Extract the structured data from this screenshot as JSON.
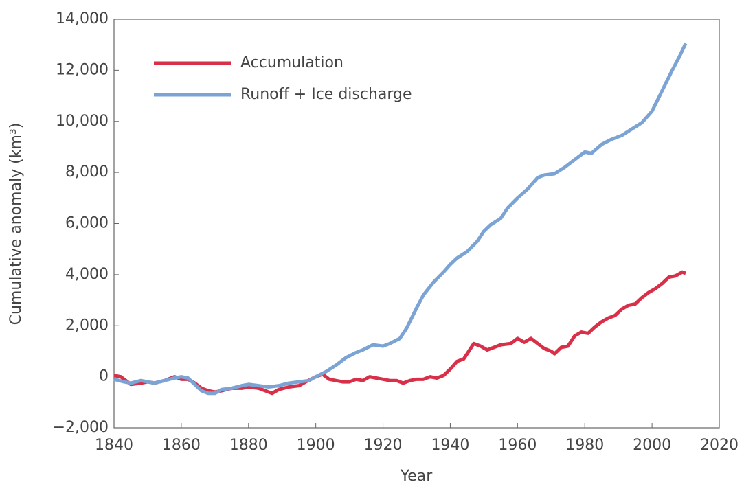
{
  "chart_data": {
    "type": "line",
    "xlabel": "Year",
    "ylabel": "Cumulative anomaly (km³)",
    "xlim": [
      1840,
      2020
    ],
    "xticks": [
      1840,
      1860,
      1880,
      1900,
      1920,
      1940,
      1960,
      1980,
      2000,
      2020
    ],
    "ylim": [
      -2000,
      14000
    ],
    "yticks": [
      {
        "value": -2000,
        "label": "−2,000"
      },
      0,
      {
        "value": 2000,
        "label": "2,000"
      },
      {
        "value": 4000,
        "label": "4,000"
      },
      {
        "value": 6000,
        "label": "6,000"
      },
      {
        "value": 8000,
        "label": "8,000"
      },
      {
        "value": 10000,
        "label": "10,000"
      },
      {
        "value": 12000,
        "label": "12,000"
      },
      {
        "value": 14000,
        "label": "14,000"
      }
    ],
    "legend": "upper left",
    "series": [
      {
        "name": "Accumulation",
        "color": "#d9304a",
        "x": [
          1840,
          1842,
          1845,
          1848,
          1850,
          1852,
          1855,
          1858,
          1860,
          1862,
          1864,
          1866,
          1868,
          1870,
          1872,
          1875,
          1878,
          1880,
          1883,
          1885,
          1887,
          1889,
          1892,
          1895,
          1897,
          1900,
          1902,
          1904,
          1906,
          1908,
          1910,
          1912,
          1914,
          1916,
          1918,
          1920,
          1922,
          1924,
          1926,
          1928,
          1930,
          1932,
          1934,
          1936,
          1938,
          1940,
          1942,
          1944,
          1946,
          1947,
          1949,
          1951,
          1953,
          1955,
          1958,
          1960,
          1962,
          1964,
          1966,
          1968,
          1970,
          1971,
          1973,
          1975,
          1977,
          1979,
          1981,
          1983,
          1985,
          1987,
          1989,
          1991,
          1993,
          1995,
          1997,
          1999,
          2001,
          2003,
          2005,
          2007,
          2009,
          2010
        ],
        "values": [
          50,
          0,
          -300,
          -250,
          -200,
          -250,
          -150,
          0,
          -100,
          -100,
          -250,
          -450,
          -550,
          -600,
          -550,
          -450,
          -450,
          -400,
          -450,
          -550,
          -650,
          -500,
          -400,
          -350,
          -200,
          0,
          100,
          -100,
          -150,
          -200,
          -200,
          -100,
          -150,
          0,
          -50,
          -100,
          -150,
          -150,
          -250,
          -150,
          -100,
          -100,
          0,
          -50,
          50,
          300,
          600,
          700,
          1100,
          1300,
          1200,
          1050,
          1150,
          1250,
          1300,
          1500,
          1350,
          1500,
          1300,
          1100,
          1000,
          900,
          1150,
          1200,
          1600,
          1750,
          1700,
          1950,
          2150,
          2300,
          2400,
          2650,
          2800,
          2850,
          3100,
          3300,
          3450,
          3650,
          3900,
          3950,
          4100,
          4050
        ]
      },
      {
        "name": "Runoff + Ice discharge",
        "color": "#7ba4d5",
        "x": [
          1840,
          1843,
          1845,
          1848,
          1850,
          1852,
          1855,
          1858,
          1860,
          1862,
          1864,
          1866,
          1868,
          1870,
          1872,
          1875,
          1878,
          1880,
          1883,
          1886,
          1889,
          1892,
          1895,
          1898,
          1900,
          1903,
          1906,
          1909,
          1912,
          1914,
          1917,
          1920,
          1922,
          1925,
          1927,
          1930,
          1932,
          1935,
          1938,
          1940,
          1942,
          1945,
          1948,
          1950,
          1952,
          1955,
          1957,
          1960,
          1963,
          1966,
          1968,
          1971,
          1974,
          1977,
          1980,
          1982,
          1985,
          1988,
          1991,
          1994,
          1997,
          2000,
          2003,
          2006,
          2008,
          2010
        ],
        "values": [
          -100,
          -200,
          -250,
          -150,
          -200,
          -250,
          -150,
          -50,
          0,
          -50,
          -300,
          -550,
          -650,
          -650,
          -500,
          -450,
          -350,
          -300,
          -350,
          -400,
          -350,
          -250,
          -200,
          -150,
          0,
          200,
          450,
          750,
          950,
          1050,
          1250,
          1200,
          1300,
          1500,
          1900,
          2700,
          3200,
          3700,
          4100,
          4400,
          4650,
          4900,
          5300,
          5700,
          5950,
          6200,
          6600,
          7000,
          7350,
          7800,
          7900,
          7950,
          8200,
          8500,
          8800,
          8750,
          9100,
          9300,
          9450,
          9700,
          9950,
          10400,
          11200,
          12000,
          12500,
          13050
        ]
      }
    ]
  }
}
